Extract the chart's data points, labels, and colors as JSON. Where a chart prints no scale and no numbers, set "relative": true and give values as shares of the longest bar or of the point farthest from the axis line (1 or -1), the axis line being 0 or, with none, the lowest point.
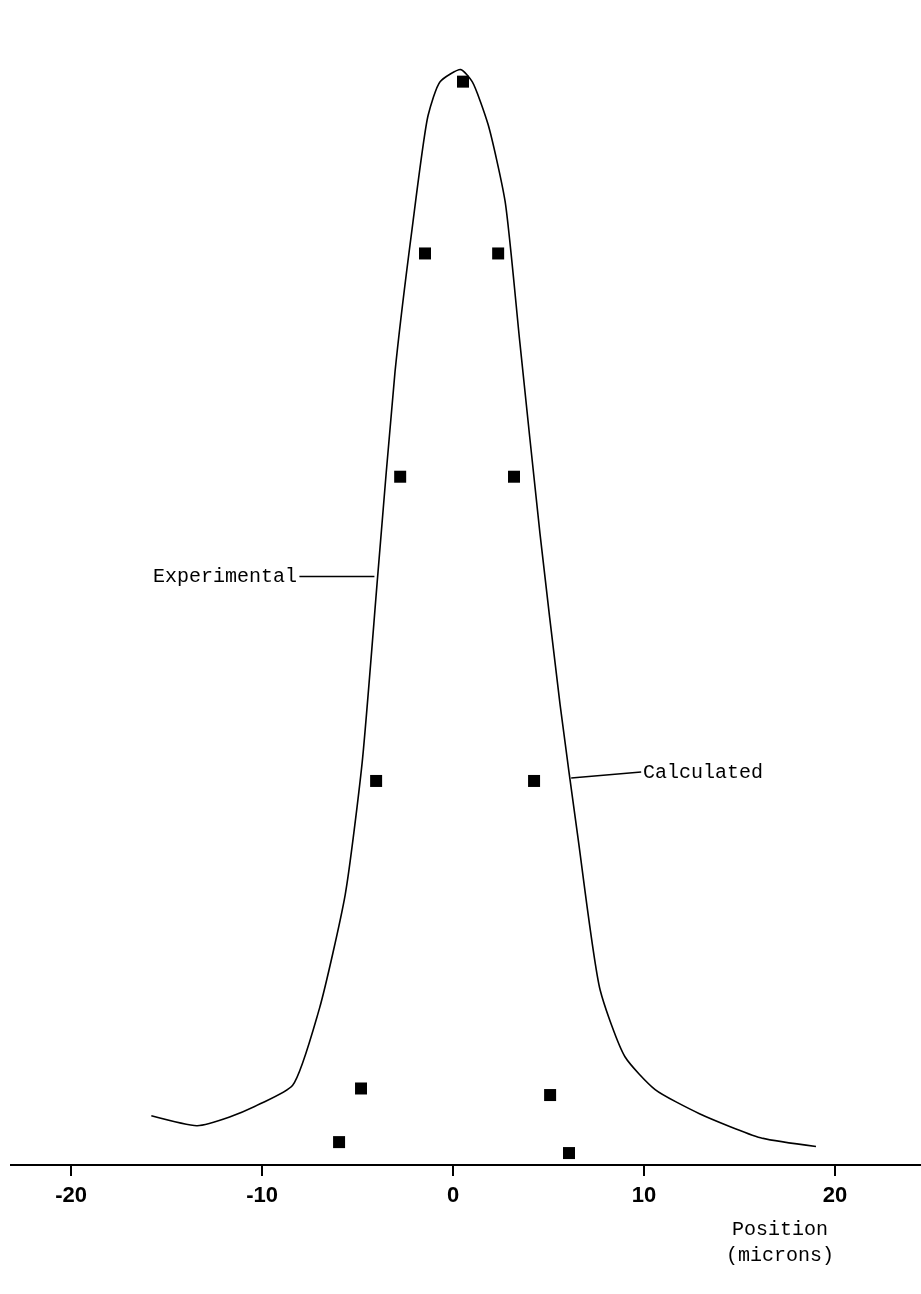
{
  "chart_data": {
    "type": "line",
    "relative": true,
    "xlabel": "Position (microns)",
    "xlim": [
      -23.2,
      24.5
    ],
    "xticks": [
      -20,
      -10,
      0,
      10,
      20
    ],
    "tick_labels": "x",
    "series": [
      {
        "color": "#000000",
        "marker": "none",
        "line_style": "solid",
        "x": [
          -15.8,
          -13.4,
          -11.7,
          -10.1,
          -8.4,
          -7.0,
          -5.65,
          -4.76,
          -3.93,
          -3.04,
          -2.15,
          -1.31,
          -0.68,
          0.4,
          1.0,
          1.83,
          2.72,
          3.5,
          4.55,
          5.6,
          6.54,
          7.7,
          9.0,
          10.58,
          12.9,
          16.1,
          19.0
        ],
        "values": [
          0.044,
          0.035,
          0.043,
          0.055,
          0.072,
          0.142,
          0.246,
          0.367,
          0.541,
          0.724,
          0.854,
          0.958,
          0.989,
          1.0,
          0.989,
          0.95,
          0.88,
          0.75,
          0.576,
          0.42,
          0.298,
          0.159,
          0.098,
          0.068,
          0.046,
          0.024,
          0.016
        ]
      },
      {
        "type": "scatter",
        "color": "#000000",
        "marker": "square",
        "x": [
          0.52,
          -1.47,
          2.36,
          -2.77,
          3.19,
          -4.03,
          4.24,
          -4.82,
          5.08,
          -5.97,
          6.07
        ],
        "values": [
          0.989,
          0.832,
          0.832,
          0.628,
          0.628,
          0.35,
          0.35,
          0.069,
          0.063,
          0.02,
          0.01
        ]
      }
    ],
    "annotations": [
      "Experimental",
      "Calculated"
    ]
  }
}
